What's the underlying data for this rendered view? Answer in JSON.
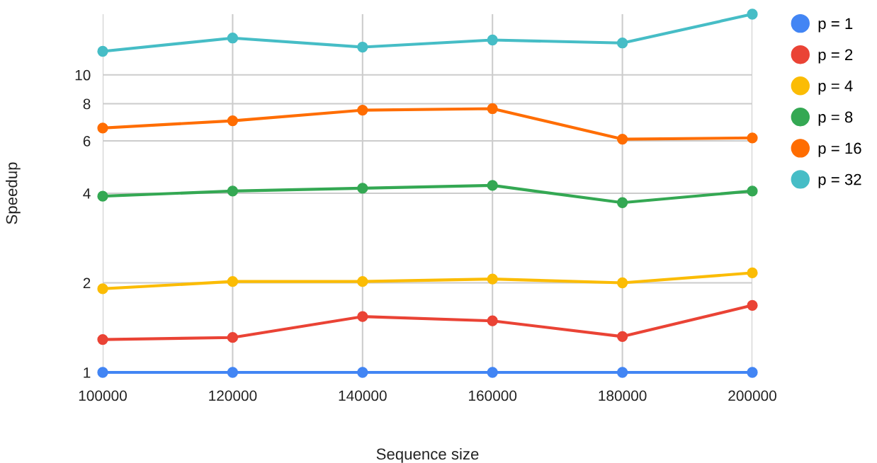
{
  "chart_data": {
    "type": "line",
    "xlabel": "Sequence size",
    "ylabel": "Speedup",
    "x": [
      100000,
      120000,
      140000,
      160000,
      180000,
      200000
    ],
    "series": [
      {
        "name": "p = 1",
        "color": "#4285f4",
        "values": [
          1,
          1,
          1,
          1,
          1,
          1
        ]
      },
      {
        "name": "p = 2",
        "color": "#ea4335",
        "values": [
          1.29,
          1.31,
          1.54,
          1.49,
          1.32,
          1.68
        ]
      },
      {
        "name": "p = 4",
        "color": "#fbbc04",
        "values": [
          1.91,
          2.02,
          2.02,
          2.06,
          2.0,
          2.16
        ]
      },
      {
        "name": "p = 8",
        "color": "#34a853",
        "values": [
          3.91,
          4.07,
          4.16,
          4.25,
          3.72,
          4.07
        ]
      },
      {
        "name": "p = 16",
        "color": "#ff6d01",
        "values": [
          6.63,
          7.01,
          7.61,
          7.7,
          6.08,
          6.14
        ]
      },
      {
        "name": "p = 32",
        "color": "#46bdc6",
        "values": [
          12.0,
          13.3,
          12.4,
          13.1,
          12.8,
          16
        ]
      }
    ],
    "log": "y",
    "xlim": [
      100000,
      200000
    ],
    "xticks": [
      100000,
      120000,
      140000,
      160000,
      180000,
      200000
    ],
    "ylim": [
      1,
      16
    ],
    "yticks": [
      1,
      2,
      4,
      6,
      8,
      10
    ],
    "grid": true,
    "legend": "right",
    "marker": "circle",
    "line_style": "solid"
  }
}
